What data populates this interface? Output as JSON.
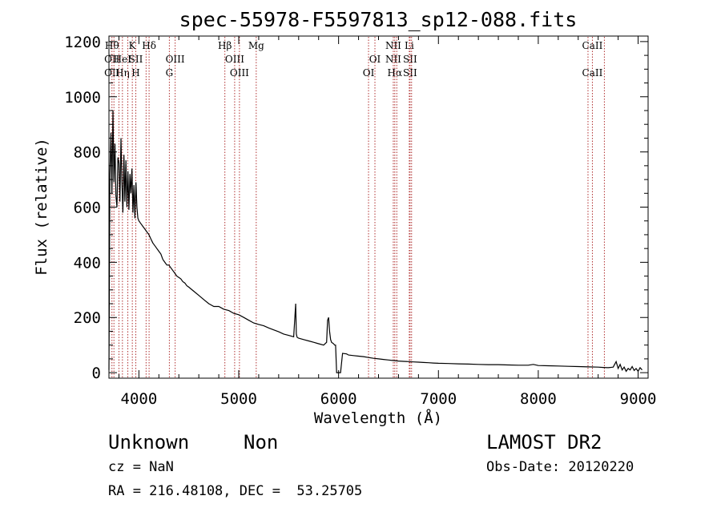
{
  "chart_data": {
    "type": "line",
    "title": "spec-55978-F5597813_sp12-088.fits",
    "xlabel": "Wavelength (Å)",
    "ylabel": "Flux (relative)",
    "xlim": [
      3700,
      9100
    ],
    "ylim": [
      -20,
      1220
    ],
    "xticks": [
      4000,
      5000,
      6000,
      7000,
      8000,
      9000
    ],
    "yticks": [
      0,
      200,
      400,
      600,
      800,
      1000,
      1200
    ],
    "grid": false,
    "line_color": "#000000",
    "marker_color": "#b03030",
    "series": [
      {
        "x": [
          3700,
          3710,
          3720,
          3730,
          3740,
          3750,
          3760,
          3770,
          3780,
          3790,
          3800,
          3810,
          3820,
          3830,
          3840,
          3850,
          3860,
          3870,
          3880,
          3890,
          3900,
          3910,
          3920,
          3930,
          3940,
          3950,
          3960,
          3970,
          3980,
          3990,
          4000,
          4020,
          4040,
          4060,
          4080,
          4100,
          4120,
          4140,
          4160,
          4180,
          4200,
          4220,
          4240,
          4260,
          4280,
          4300,
          4320,
          4340,
          4360,
          4380,
          4400,
          4420,
          4440,
          4460,
          4480,
          4500,
          4550,
          4600,
          4650,
          4700,
          4750,
          4800,
          4850,
          4900,
          4950,
          5000,
          5050,
          5100,
          5150,
          5200,
          5250,
          5300,
          5350,
          5400,
          5450,
          5500,
          5550,
          5570,
          5577,
          5585,
          5600,
          5650,
          5700,
          5750,
          5800,
          5850,
          5880,
          5890,
          5900,
          5910,
          5920,
          5930,
          5950,
          5960,
          5970,
          5980,
          5990,
          6000,
          6010,
          6020,
          6040,
          6080,
          6100,
          6150,
          6200,
          6250,
          6300,
          6350,
          6400,
          6450,
          6500,
          6550,
          6600,
          6650,
          6700,
          6750,
          6800,
          6850,
          6900,
          6950,
          7000,
          7100,
          7200,
          7300,
          7400,
          7500,
          7600,
          7700,
          7800,
          7900,
          7950,
          8000,
          8100,
          8200,
          8300,
          8400,
          8500,
          8600,
          8650,
          8700,
          8750,
          8780,
          8800,
          8820,
          8840,
          8860,
          8880,
          8900,
          8920,
          8940,
          8960,
          8980,
          9000,
          9020,
          9040
        ],
        "y": [
          10,
          720,
          870,
          650,
          950,
          690,
          830,
          640,
          600,
          780,
          760,
          620,
          850,
          690,
          580,
          790,
          620,
          770,
          600,
          730,
          590,
          720,
          650,
          740,
          580,
          680,
          560,
          690,
          600,
          560,
          550,
          540,
          530,
          520,
          510,
          500,
          485,
          470,
          460,
          450,
          440,
          430,
          410,
          400,
          390,
          390,
          380,
          370,
          360,
          350,
          345,
          340,
          330,
          325,
          315,
          310,
          295,
          280,
          265,
          250,
          240,
          240,
          230,
          225,
          215,
          210,
          200,
          190,
          180,
          175,
          170,
          162,
          155,
          148,
          140,
          135,
          130,
          250,
          140,
          128,
          125,
          120,
          115,
          110,
          105,
          100,
          110,
          190,
          200,
          150,
          120,
          110,
          105,
          100,
          100,
          0,
          0,
          0,
          0,
          0,
          70,
          68,
          64,
          62,
          60,
          58,
          55,
          52,
          50,
          48,
          46,
          44,
          42,
          41,
          40,
          39,
          38,
          37,
          36,
          35,
          34,
          33,
          32,
          31,
          30,
          29,
          29,
          28,
          27,
          27,
          30,
          26,
          25,
          24,
          23,
          22,
          21,
          20,
          19,
          18,
          20,
          40,
          15,
          30,
          10,
          20,
          5,
          15,
          10,
          22,
          8,
          15,
          5,
          18,
          10
        ]
      }
    ],
    "line_markers": [
      {
        "x": 3730,
        "top": "Hθ",
        "mid": "OII",
        "bot": "OII"
      },
      {
        "x": 3750,
        "top": "",
        "mid": "",
        "bot": ""
      },
      {
        "x": 3800,
        "top": "",
        "mid": "",
        "bot": ""
      },
      {
        "x": 3835,
        "top": "",
        "mid": "HeI",
        "bot": "Hη"
      },
      {
        "x": 3889,
        "top": "",
        "mid": "",
        "bot": ""
      },
      {
        "x": 3934,
        "top": "K",
        "mid": "",
        "bot": ""
      },
      {
        "x": 3969,
        "top": "",
        "mid": "SII",
        "bot": "H"
      },
      {
        "x": 4072,
        "top": "",
        "mid": "",
        "bot": ""
      },
      {
        "x": 4102,
        "top": "Hδ",
        "mid": "",
        "bot": ""
      },
      {
        "x": 4305,
        "top": "",
        "mid": "",
        "bot": "G"
      },
      {
        "x": 4363,
        "top": "",
        "mid": "OIII",
        "bot": ""
      },
      {
        "x": 4861,
        "top": "Hβ",
        "mid": "",
        "bot": ""
      },
      {
        "x": 4959,
        "top": "",
        "mid": "OIII",
        "bot": ""
      },
      {
        "x": 5007,
        "top": "",
        "mid": "",
        "bot": "OIII"
      },
      {
        "x": 5175,
        "top": "Mg",
        "mid": "",
        "bot": ""
      },
      {
        "x": 6300,
        "top": "",
        "mid": "",
        "bot": "OI"
      },
      {
        "x": 6364,
        "top": "",
        "mid": "OI",
        "bot": ""
      },
      {
        "x": 6548,
        "top": "NII",
        "mid": "NII",
        "bot": ""
      },
      {
        "x": 6563,
        "top": "",
        "mid": "",
        "bot": "Hα"
      },
      {
        "x": 6583,
        "top": "",
        "mid": "",
        "bot": ""
      },
      {
        "x": 6708,
        "top": "Li",
        "mid": "",
        "bot": ""
      },
      {
        "x": 6716,
        "top": "",
        "mid": "SII",
        "bot": "SII"
      },
      {
        "x": 6731,
        "top": "",
        "mid": "",
        "bot": ""
      },
      {
        "x": 8498,
        "top": "",
        "mid": "",
        "bot": ""
      },
      {
        "x": 8542,
        "top": "CaII",
        "mid": "",
        "bot": "CaII"
      },
      {
        "x": 8662,
        "top": "",
        "mid": "",
        "bot": ""
      }
    ]
  },
  "info": {
    "object_class": "Unknown",
    "object_subclass": "Non",
    "survey": "LAMOST DR2",
    "redshift_line": "cz = NaN",
    "obs_date_line": "Obs-Date: 20120220",
    "coords_line": "RA = 216.48108, DEC =  53.25705"
  }
}
